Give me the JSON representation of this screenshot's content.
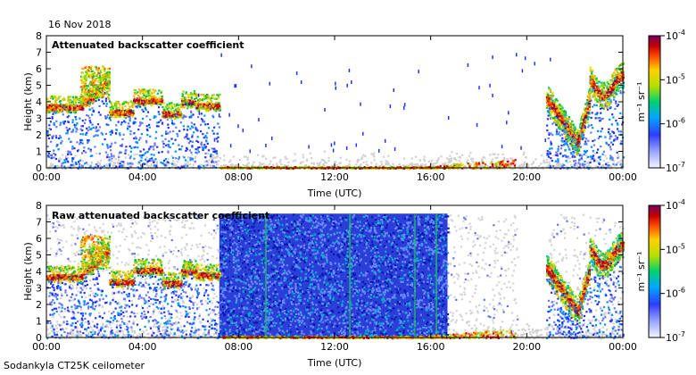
{
  "date_label": "16 Nov 2018",
  "footer_label": "Sodankyla CT25K ceilometer",
  "chart_data": [
    {
      "type": "heatmap",
      "title": "Attenuated backscatter coefficient",
      "xlabel": "Time (UTC)",
      "ylabel": "Height (km)",
      "x_ticks": [
        "00:00",
        "04:00",
        "08:00",
        "12:00",
        "16:00",
        "20:00",
        "00:00"
      ],
      "y_ticks": [
        "0",
        "1",
        "2",
        "3",
        "4",
        "5",
        "6",
        "7",
        "8"
      ],
      "xlim_hours": [
        0,
        24
      ],
      "ylim_km": [
        0,
        8
      ],
      "colorbar": {
        "scale": "log",
        "range": [
          1e-07,
          0.0001
        ],
        "tick_exponents": [
          "-7",
          "-6",
          "-5",
          "-4"
        ],
        "unit_label": "m⁻¹ sr⁻¹"
      },
      "features": [
        {
          "name": "cloud layer",
          "time_hours": [
            0,
            7.2
          ],
          "height_km": [
            3.0,
            6.0
          ]
        },
        {
          "name": "cloud layer",
          "time_hours": [
            20.8,
            24
          ],
          "height_km": [
            1.4,
            6.5
          ]
        },
        {
          "name": "surface layer",
          "time_hours": [
            7.2,
            19.5
          ],
          "height_km": [
            0,
            0.6
          ]
        }
      ]
    },
    {
      "type": "heatmap",
      "title": "Raw attenuated backscatter coefficient",
      "xlabel": "Time (UTC)",
      "ylabel": "Height (km)",
      "x_ticks": [
        "00:00",
        "04:00",
        "08:00",
        "12:00",
        "16:00",
        "20:00",
        "00:00"
      ],
      "y_ticks": [
        "0",
        "1",
        "2",
        "3",
        "4",
        "5",
        "6",
        "7",
        "8"
      ],
      "xlim_hours": [
        0,
        24
      ],
      "ylim_km": [
        0,
        8
      ],
      "colorbar": {
        "scale": "log",
        "range": [
          1e-07,
          0.0001
        ],
        "tick_exponents": [
          "-7",
          "-6",
          "-5",
          "-4"
        ],
        "unit_label": "m⁻¹ sr⁻¹"
      },
      "features": [
        {
          "name": "noise region",
          "time_hours": [
            7.2,
            16.7
          ],
          "height_km": [
            0,
            7.5
          ]
        },
        {
          "name": "cloud layer",
          "time_hours": [
            0,
            7.2
          ],
          "height_km": [
            3.0,
            6.0
          ]
        },
        {
          "name": "cloud layer",
          "time_hours": [
            20.8,
            24
          ],
          "height_km": [
            1.4,
            6.0
          ]
        }
      ]
    }
  ]
}
